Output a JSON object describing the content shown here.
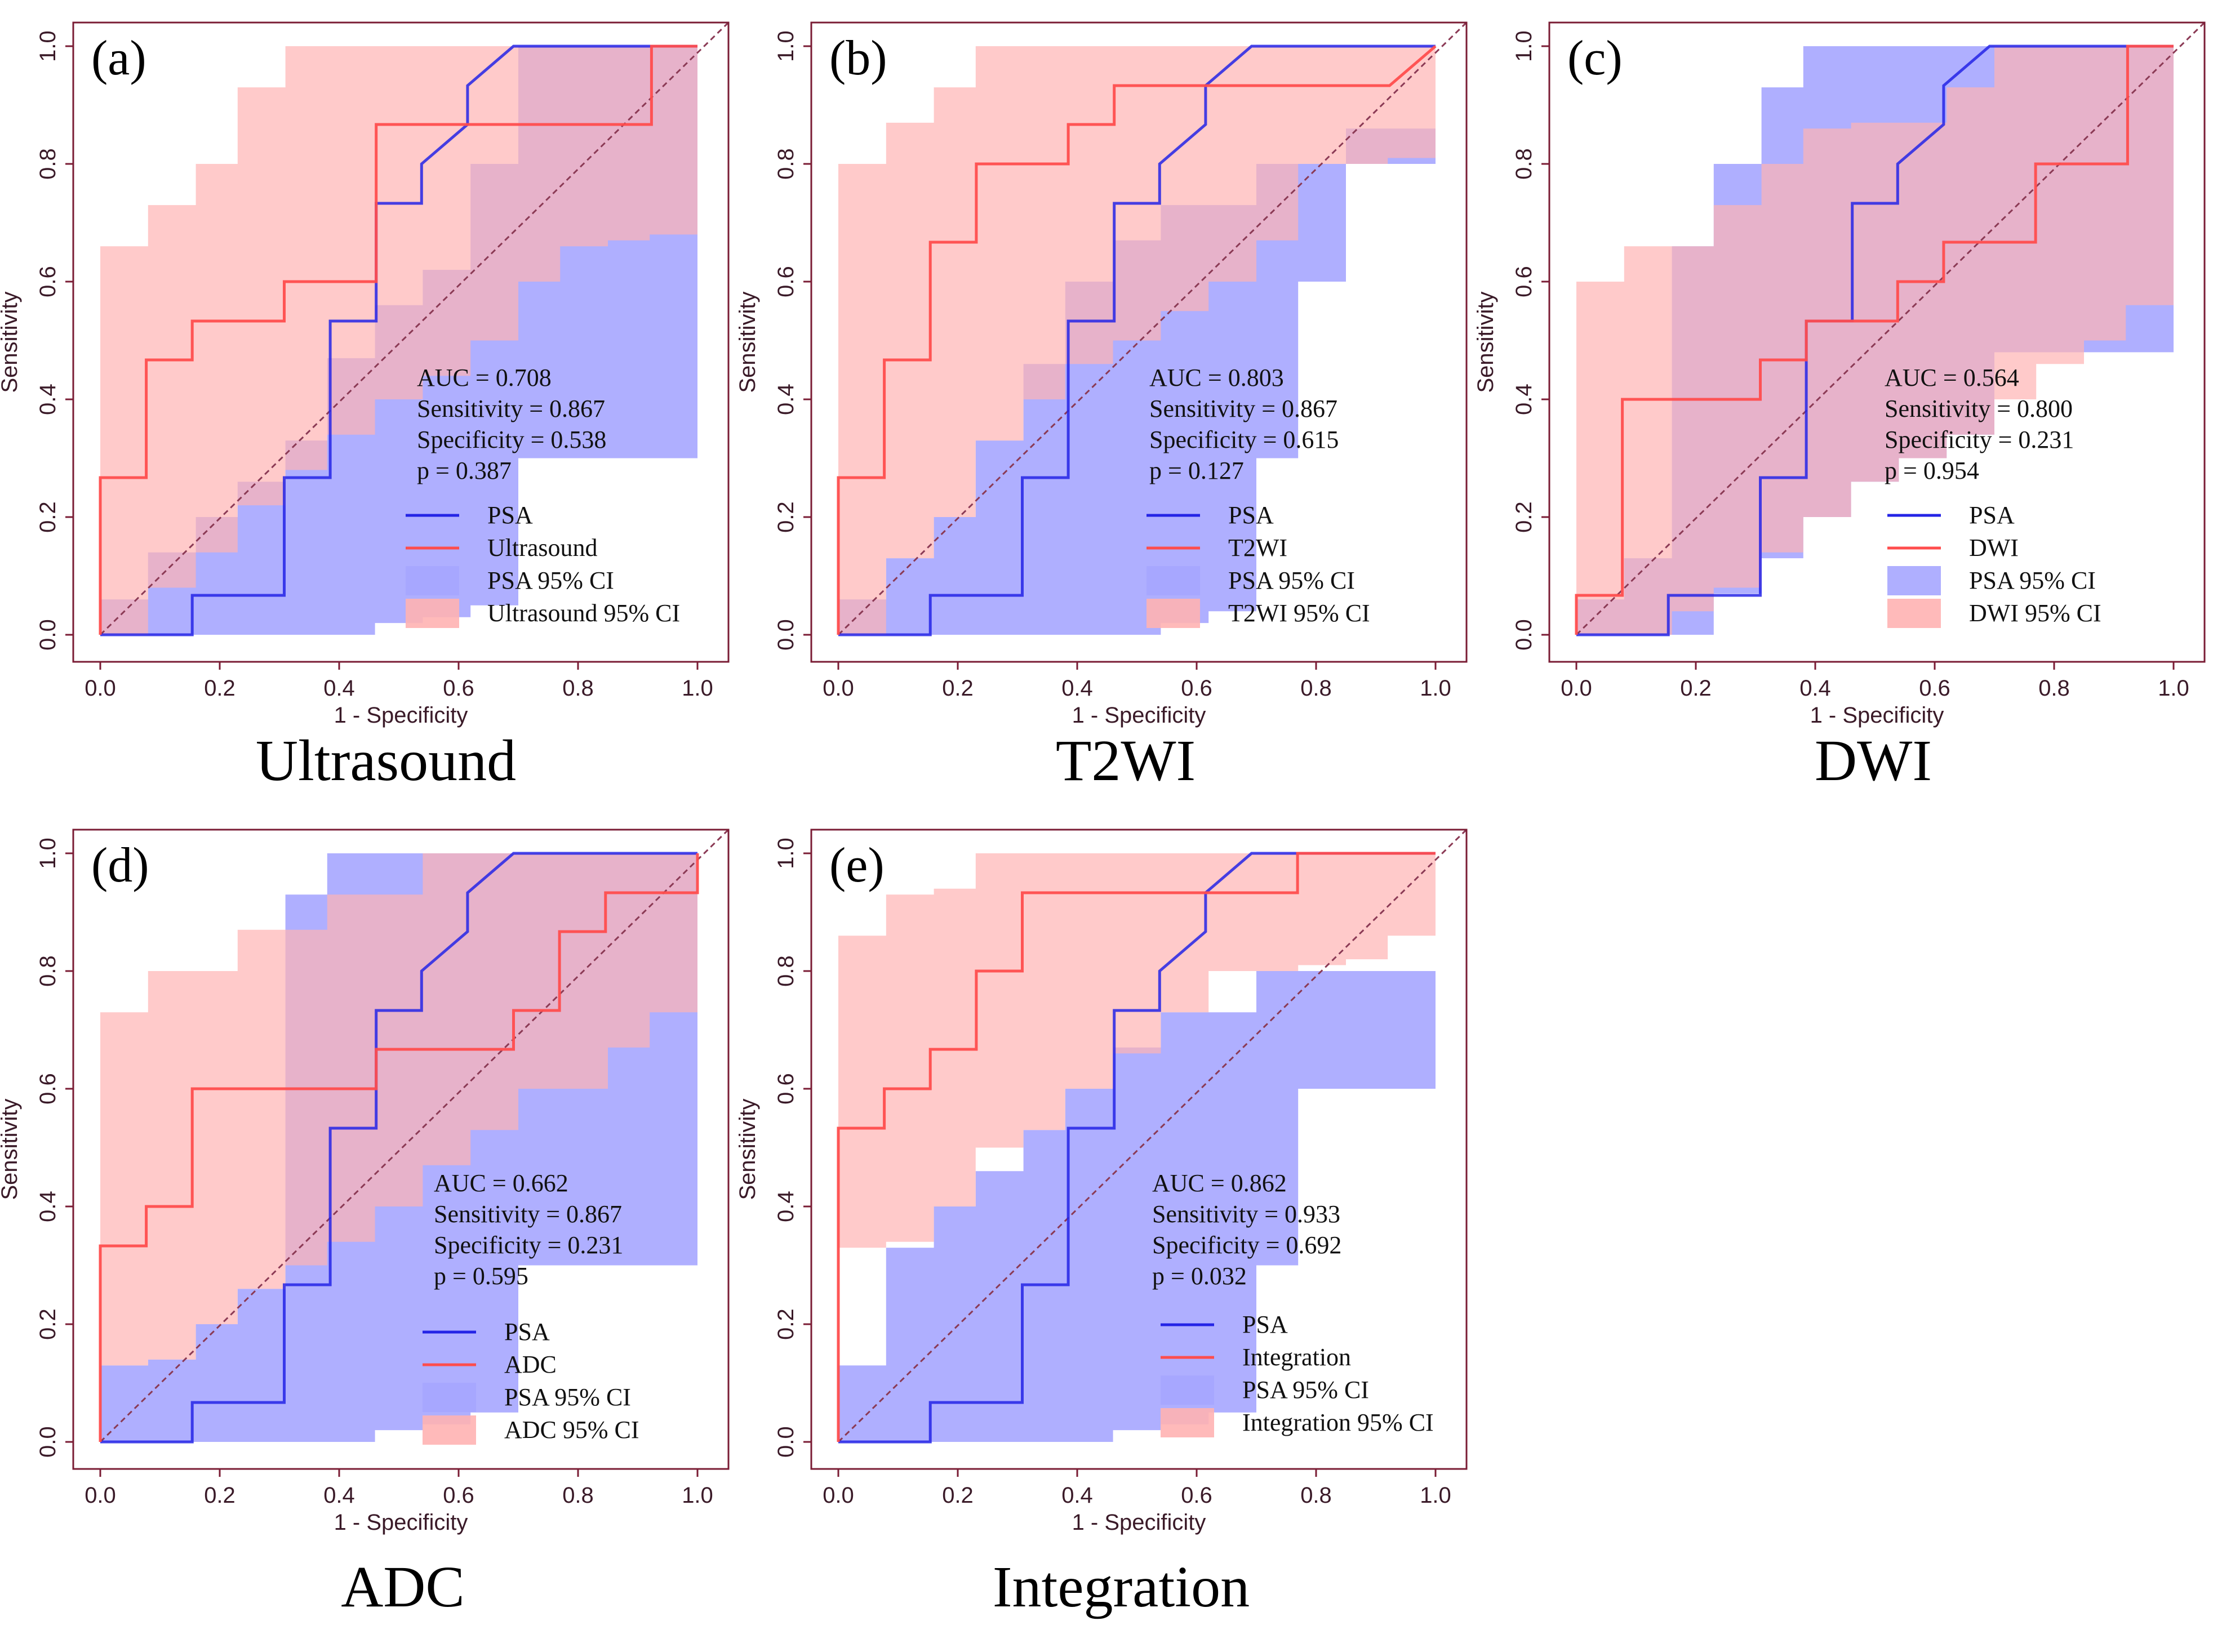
{
  "colors": {
    "psa": "#2424e6",
    "modality": "#ff4d4d",
    "psa_ci": "#a6a6ff",
    "modality_ci": "#ffb3b3",
    "axis": "#7a1c34",
    "diag": "#8b3a55",
    "tick_text": "#3a1a28"
  },
  "chart_data": [
    {
      "type": "line",
      "panel_label": "(a)",
      "caption": "Ultrasound",
      "xlabel": "1 - Specificity",
      "ylabel": "Sensitivity",
      "xlim": [
        0,
        1
      ],
      "ylim": [
        0,
        1
      ],
      "xticks": [
        "0.0",
        "0.2",
        "0.4",
        "0.6",
        "0.8",
        "1.0"
      ],
      "yticks": [
        "0.0",
        "0.2",
        "0.4",
        "0.6",
        "0.8",
        "1.0"
      ],
      "stats": [
        "AUC = 0.708",
        "Sensitivity = 0.867",
        "Specificity = 0.538",
        "p = 0.387"
      ],
      "legend": [
        "PSA",
        "Ultrasound",
        "PSA 95% CI",
        "Ultrasound 95% CI"
      ],
      "series": [
        {
          "name": "PSA",
          "x": [
            0,
            0.154,
            0.154,
            0.308,
            0.308,
            0.385,
            0.385,
            0.462,
            0.462,
            0.538,
            0.538,
            0.615,
            0.615,
            0.692,
            1.0
          ],
          "y": [
            0,
            0,
            0.067,
            0.067,
            0.267,
            0.267,
            0.533,
            0.533,
            0.733,
            0.733,
            0.8,
            0.867,
            0.933,
            1.0,
            1.0
          ]
        },
        {
          "name": "Ultrasound",
          "x": [
            0,
            0,
            0.077,
            0.077,
            0.154,
            0.154,
            0.308,
            0.308,
            0.462,
            0.462,
            0.923,
            0.923,
            1.0
          ],
          "y": [
            0,
            0.267,
            0.267,
            0.467,
            0.467,
            0.533,
            0.533,
            0.6,
            0.6,
            0.867,
            0.867,
            1.0,
            1.0
          ]
        }
      ],
      "ci_bands": [
        {
          "name": "PSA 95% CI",
          "x": [
            0,
            0.08,
            0.16,
            0.23,
            0.31,
            0.38,
            0.46,
            0.54,
            0.62,
            0.7,
            1.0
          ],
          "lower": [
            0,
            0,
            0,
            0,
            0,
            0,
            0.02,
            0.03,
            0.05,
            0.3,
            1.0
          ],
          "upper": [
            0.06,
            0.14,
            0.2,
            0.26,
            0.33,
            0.47,
            0.56,
            0.62,
            0.8,
            1.0,
            1.0
          ]
        },
        {
          "name": "Ultrasound 95% CI",
          "x": [
            0,
            0.08,
            0.16,
            0.23,
            0.31,
            0.38,
            0.46,
            0.54,
            0.62,
            0.7,
            0.77,
            0.85,
            0.92,
            1.0
          ],
          "lower": [
            0,
            0.08,
            0.14,
            0.22,
            0.28,
            0.34,
            0.4,
            0.44,
            0.5,
            0.6,
            0.66,
            0.67,
            0.68,
            0.74
          ],
          "upper": [
            0.66,
            0.73,
            0.8,
            0.93,
            1.0,
            1.0,
            1.0,
            1.0,
            1.0,
            1.0,
            1.0,
            1.0,
            1.0,
            1.0
          ]
        }
      ]
    },
    {
      "type": "line",
      "panel_label": "(b)",
      "caption": "T2WI",
      "xlabel": "1 - Specificity",
      "ylabel": "Sensitivity",
      "xlim": [
        0,
        1
      ],
      "ylim": [
        0,
        1
      ],
      "xticks": [
        "0.0",
        "0.2",
        "0.4",
        "0.6",
        "0.8",
        "1.0"
      ],
      "yticks": [
        "0.0",
        "0.2",
        "0.4",
        "0.6",
        "0.8",
        "1.0"
      ],
      "stats": [
        "AUC = 0.803",
        "Sensitivity = 0.867",
        "Specificity = 0.615",
        "p = 0.127"
      ],
      "legend": [
        "PSA",
        "T2WI",
        "PSA 95% CI",
        "T2WI 95% CI"
      ],
      "series": [
        {
          "name": "PSA",
          "x": [
            0,
            0.154,
            0.154,
            0.308,
            0.308,
            0.385,
            0.385,
            0.462,
            0.462,
            0.538,
            0.538,
            0.615,
            0.615,
            0.692,
            1.0
          ],
          "y": [
            0,
            0,
            0.067,
            0.067,
            0.267,
            0.267,
            0.533,
            0.533,
            0.733,
            0.733,
            0.8,
            0.867,
            0.933,
            1.0,
            1.0
          ]
        },
        {
          "name": "T2WI",
          "x": [
            0,
            0,
            0.077,
            0.077,
            0.154,
            0.154,
            0.231,
            0.231,
            0.385,
            0.385,
            0.462,
            0.462,
            0.923,
            1.0
          ],
          "y": [
            0,
            0.267,
            0.267,
            0.467,
            0.467,
            0.667,
            0.667,
            0.8,
            0.8,
            0.867,
            0.867,
            0.933,
            0.933,
            1.0
          ]
        }
      ],
      "ci_bands": [
        {
          "name": "PSA 95% CI",
          "x": [
            0,
            0.08,
            0.16,
            0.23,
            0.31,
            0.38,
            0.46,
            0.54,
            0.62,
            0.7,
            0.77,
            0.85,
            1.0
          ],
          "lower": [
            0,
            0,
            0,
            0,
            0,
            0,
            0,
            0.02,
            0.04,
            0.3,
            0.6,
            0.8,
            1.0
          ],
          "upper": [
            0.06,
            0.13,
            0.2,
            0.33,
            0.46,
            0.6,
            0.67,
            0.73,
            0.73,
            0.8,
            0.8,
            0.86,
            1.0
          ]
        },
        {
          "name": "T2WI 95% CI",
          "x": [
            0,
            0.08,
            0.16,
            0.23,
            0.31,
            0.38,
            0.46,
            0.54,
            0.62,
            0.7,
            0.77,
            0.85,
            0.92,
            1.0
          ],
          "lower": [
            0,
            0.13,
            0.2,
            0.33,
            0.4,
            0.46,
            0.5,
            0.55,
            0.6,
            0.67,
            0.8,
            0.8,
            0.81,
            0.87
          ],
          "upper": [
            0.8,
            0.87,
            0.93,
            1.0,
            1.0,
            1.0,
            1.0,
            1.0,
            1.0,
            1.0,
            1.0,
            1.0,
            1.0,
            1.0
          ]
        }
      ]
    },
    {
      "type": "line",
      "panel_label": "(c)",
      "caption": "DWI",
      "xlabel": "1 - Specificity",
      "ylabel": "Sensitivity",
      "xlim": [
        0,
        1
      ],
      "ylim": [
        0,
        1
      ],
      "xticks": [
        "0.0",
        "0.2",
        "0.4",
        "0.6",
        "0.8",
        "1.0"
      ],
      "yticks": [
        "0.0",
        "0.2",
        "0.4",
        "0.6",
        "0.8",
        "1.0"
      ],
      "stats": [
        "AUC = 0.564",
        "Sensitivity = 0.800",
        "Specificity = 0.231",
        "p = 0.954"
      ],
      "legend": [
        "PSA",
        "DWI",
        "PSA 95% CI",
        "DWI 95% CI"
      ],
      "series": [
        {
          "name": "PSA",
          "x": [
            0,
            0.154,
            0.154,
            0.308,
            0.308,
            0.385,
            0.385,
            0.462,
            0.462,
            0.538,
            0.538,
            0.615,
            0.615,
            0.692,
            1.0
          ],
          "y": [
            0,
            0,
            0.067,
            0.067,
            0.267,
            0.267,
            0.533,
            0.533,
            0.733,
            0.733,
            0.8,
            0.867,
            0.933,
            1.0,
            1.0
          ]
        },
        {
          "name": "DWI",
          "x": [
            0,
            0,
            0.077,
            0.077,
            0.308,
            0.308,
            0.385,
            0.385,
            0.538,
            0.538,
            0.615,
            0.615,
            0.769,
            0.769,
            0.923,
            0.923,
            1.0
          ],
          "y": [
            0,
            0.067,
            0.067,
            0.4,
            0.4,
            0.467,
            0.467,
            0.533,
            0.533,
            0.6,
            0.6,
            0.667,
            0.667,
            0.8,
            0.8,
            1.0,
            1.0
          ]
        }
      ],
      "ci_bands": [
        {
          "name": "PSA 95% CI",
          "x": [
            0,
            0.08,
            0.16,
            0.23,
            0.31,
            0.38,
            0.46,
            0.54,
            0.62,
            0.7,
            1.0
          ],
          "lower": [
            0,
            0,
            0,
            0.07,
            0.13,
            0.2,
            0.26,
            0.3,
            0.34,
            0.48,
            1.0
          ],
          "upper": [
            0.06,
            0.13,
            0.66,
            0.8,
            0.93,
            1.0,
            1.0,
            1.0,
            1.0,
            1.0,
            1.0
          ]
        },
        {
          "name": "DWI 95% CI",
          "x": [
            0,
            0.08,
            0.16,
            0.23,
            0.31,
            0.38,
            0.46,
            0.54,
            0.62,
            0.7,
            0.77,
            0.85,
            0.92,
            1.0
          ],
          "lower": [
            0,
            0,
            0.04,
            0.08,
            0.14,
            0.2,
            0.26,
            0.3,
            0.34,
            0.4,
            0.46,
            0.5,
            0.56,
            0.6
          ],
          "upper": [
            0.6,
            0.66,
            0.66,
            0.73,
            0.8,
            0.86,
            0.87,
            0.87,
            0.93,
            1.0,
            1.0,
            1.0,
            1.0,
            1.0
          ]
        }
      ]
    },
    {
      "type": "line",
      "panel_label": "(d)",
      "caption": "ADC",
      "xlabel": "1 - Specificity",
      "ylabel": "Sensitivity",
      "xlim": [
        0,
        1
      ],
      "ylim": [
        0,
        1
      ],
      "xticks": [
        "0.0",
        "0.2",
        "0.4",
        "0.6",
        "0.8",
        "1.0"
      ],
      "yticks": [
        "0.0",
        "0.2",
        "0.4",
        "0.6",
        "0.8",
        "1.0"
      ],
      "stats": [
        "AUC = 0.662",
        "Sensitivity = 0.867",
        "Specificity = 0.231",
        "p = 0.595"
      ],
      "legend": [
        "PSA",
        "ADC",
        "PSA 95% CI",
        "ADC 95% CI"
      ],
      "series": [
        {
          "name": "PSA",
          "x": [
            0,
            0.154,
            0.154,
            0.308,
            0.308,
            0.385,
            0.385,
            0.462,
            0.462,
            0.538,
            0.538,
            0.615,
            0.615,
            0.692,
            1.0
          ],
          "y": [
            0,
            0,
            0.067,
            0.067,
            0.267,
            0.267,
            0.533,
            0.533,
            0.733,
            0.733,
            0.8,
            0.867,
            0.933,
            1.0,
            1.0
          ]
        },
        {
          "name": "ADC",
          "x": [
            0,
            0,
            0.077,
            0.077,
            0.154,
            0.154,
            0.462,
            0.462,
            0.615,
            0.615,
            0.692,
            0.692,
            0.769,
            0.769,
            0.846,
            0.846,
            1.0,
            1.0
          ],
          "y": [
            0,
            0.333,
            0.333,
            0.4,
            0.4,
            0.6,
            0.6,
            0.667,
            0.667,
            0.667,
            0.667,
            0.733,
            0.733,
            0.867,
            0.867,
            0.933,
            0.933,
            1.0
          ]
        }
      ],
      "ci_bands": [
        {
          "name": "PSA 95% CI",
          "x": [
            0,
            0.08,
            0.16,
            0.23,
            0.31,
            0.38,
            0.46,
            0.54,
            0.62,
            0.7,
            1.0
          ],
          "lower": [
            0,
            0,
            0,
            0,
            0,
            0,
            0.02,
            0.03,
            0.05,
            0.3,
            1.0
          ],
          "upper": [
            0.13,
            0.14,
            0.2,
            0.26,
            0.93,
            1.0,
            1.0,
            1.0,
            1.0,
            1.0,
            1.0
          ]
        },
        {
          "name": "ADC 95% CI",
          "x": [
            0,
            0.08,
            0.16,
            0.23,
            0.31,
            0.38,
            0.46,
            0.54,
            0.62,
            0.7,
            0.77,
            0.85,
            0.92,
            1.0
          ],
          "lower": [
            0.13,
            0.14,
            0.2,
            0.26,
            0.3,
            0.34,
            0.4,
            0.47,
            0.53,
            0.6,
            0.6,
            0.67,
            0.73,
            0.74
          ],
          "upper": [
            0.73,
            0.8,
            0.8,
            0.87,
            0.87,
            0.93,
            0.93,
            1.0,
            1.0,
            1.0,
            1.0,
            1.0,
            1.0,
            1.0
          ]
        }
      ]
    },
    {
      "type": "line",
      "panel_label": "(e)",
      "caption": "Integration",
      "xlabel": "1 - Specificity",
      "ylabel": "Sensitivity",
      "xlim": [
        0,
        1
      ],
      "ylim": [
        0,
        1
      ],
      "xticks": [
        "0.0",
        "0.2",
        "0.4",
        "0.6",
        "0.8",
        "1.0"
      ],
      "yticks": [
        "0.0",
        "0.2",
        "0.4",
        "0.6",
        "0.8",
        "1.0"
      ],
      "stats": [
        "AUC = 0.862",
        "Sensitivity = 0.933",
        "Specificity = 0.692",
        "p = 0.032"
      ],
      "legend": [
        "PSA",
        "Integration",
        "PSA 95% CI",
        "Integration 95% CI"
      ],
      "series": [
        {
          "name": "PSA",
          "x": [
            0,
            0.154,
            0.154,
            0.308,
            0.308,
            0.385,
            0.385,
            0.462,
            0.462,
            0.538,
            0.538,
            0.615,
            0.615,
            0.692,
            1.0
          ],
          "y": [
            0,
            0,
            0.067,
            0.067,
            0.267,
            0.267,
            0.533,
            0.533,
            0.733,
            0.733,
            0.8,
            0.867,
            0.933,
            1.0,
            1.0
          ]
        },
        {
          "name": "Integration",
          "x": [
            0,
            0,
            0.077,
            0.077,
            0.154,
            0.154,
            0.231,
            0.231,
            0.308,
            0.308,
            0.769,
            0.769,
            1.0
          ],
          "y": [
            0,
            0.533,
            0.533,
            0.6,
            0.6,
            0.667,
            0.667,
            0.8,
            0.8,
            0.933,
            0.933,
            1.0,
            1.0
          ]
        }
      ],
      "ci_bands": [
        {
          "name": "PSA 95% CI",
          "x": [
            0,
            0.08,
            0.16,
            0.23,
            0.31,
            0.38,
            0.46,
            0.54,
            0.62,
            0.7,
            0.77,
            1.0
          ],
          "lower": [
            0,
            0,
            0,
            0,
            0,
            0,
            0.02,
            0.03,
            0.05,
            0.3,
            0.6,
            1.0
          ],
          "upper": [
            0.13,
            0.33,
            0.4,
            0.46,
            0.53,
            0.6,
            0.67,
            0.73,
            0.73,
            0.8,
            0.8,
            1.0
          ]
        },
        {
          "name": "Integration 95% CI",
          "x": [
            0,
            0.08,
            0.16,
            0.23,
            0.31,
            0.38,
            0.46,
            0.54,
            0.62,
            0.7,
            0.77,
            0.85,
            0.92,
            1.0
          ],
          "lower": [
            0.33,
            0.34,
            0.4,
            0.5,
            0.53,
            0.6,
            0.66,
            0.73,
            0.8,
            0.8,
            0.81,
            0.82,
            0.86,
            1.0
          ],
          "upper": [
            0.86,
            0.93,
            0.94,
            1.0,
            1.0,
            1.0,
            1.0,
            1.0,
            1.0,
            1.0,
            1.0,
            1.0,
            1.0,
            1.0
          ]
        }
      ]
    }
  ]
}
